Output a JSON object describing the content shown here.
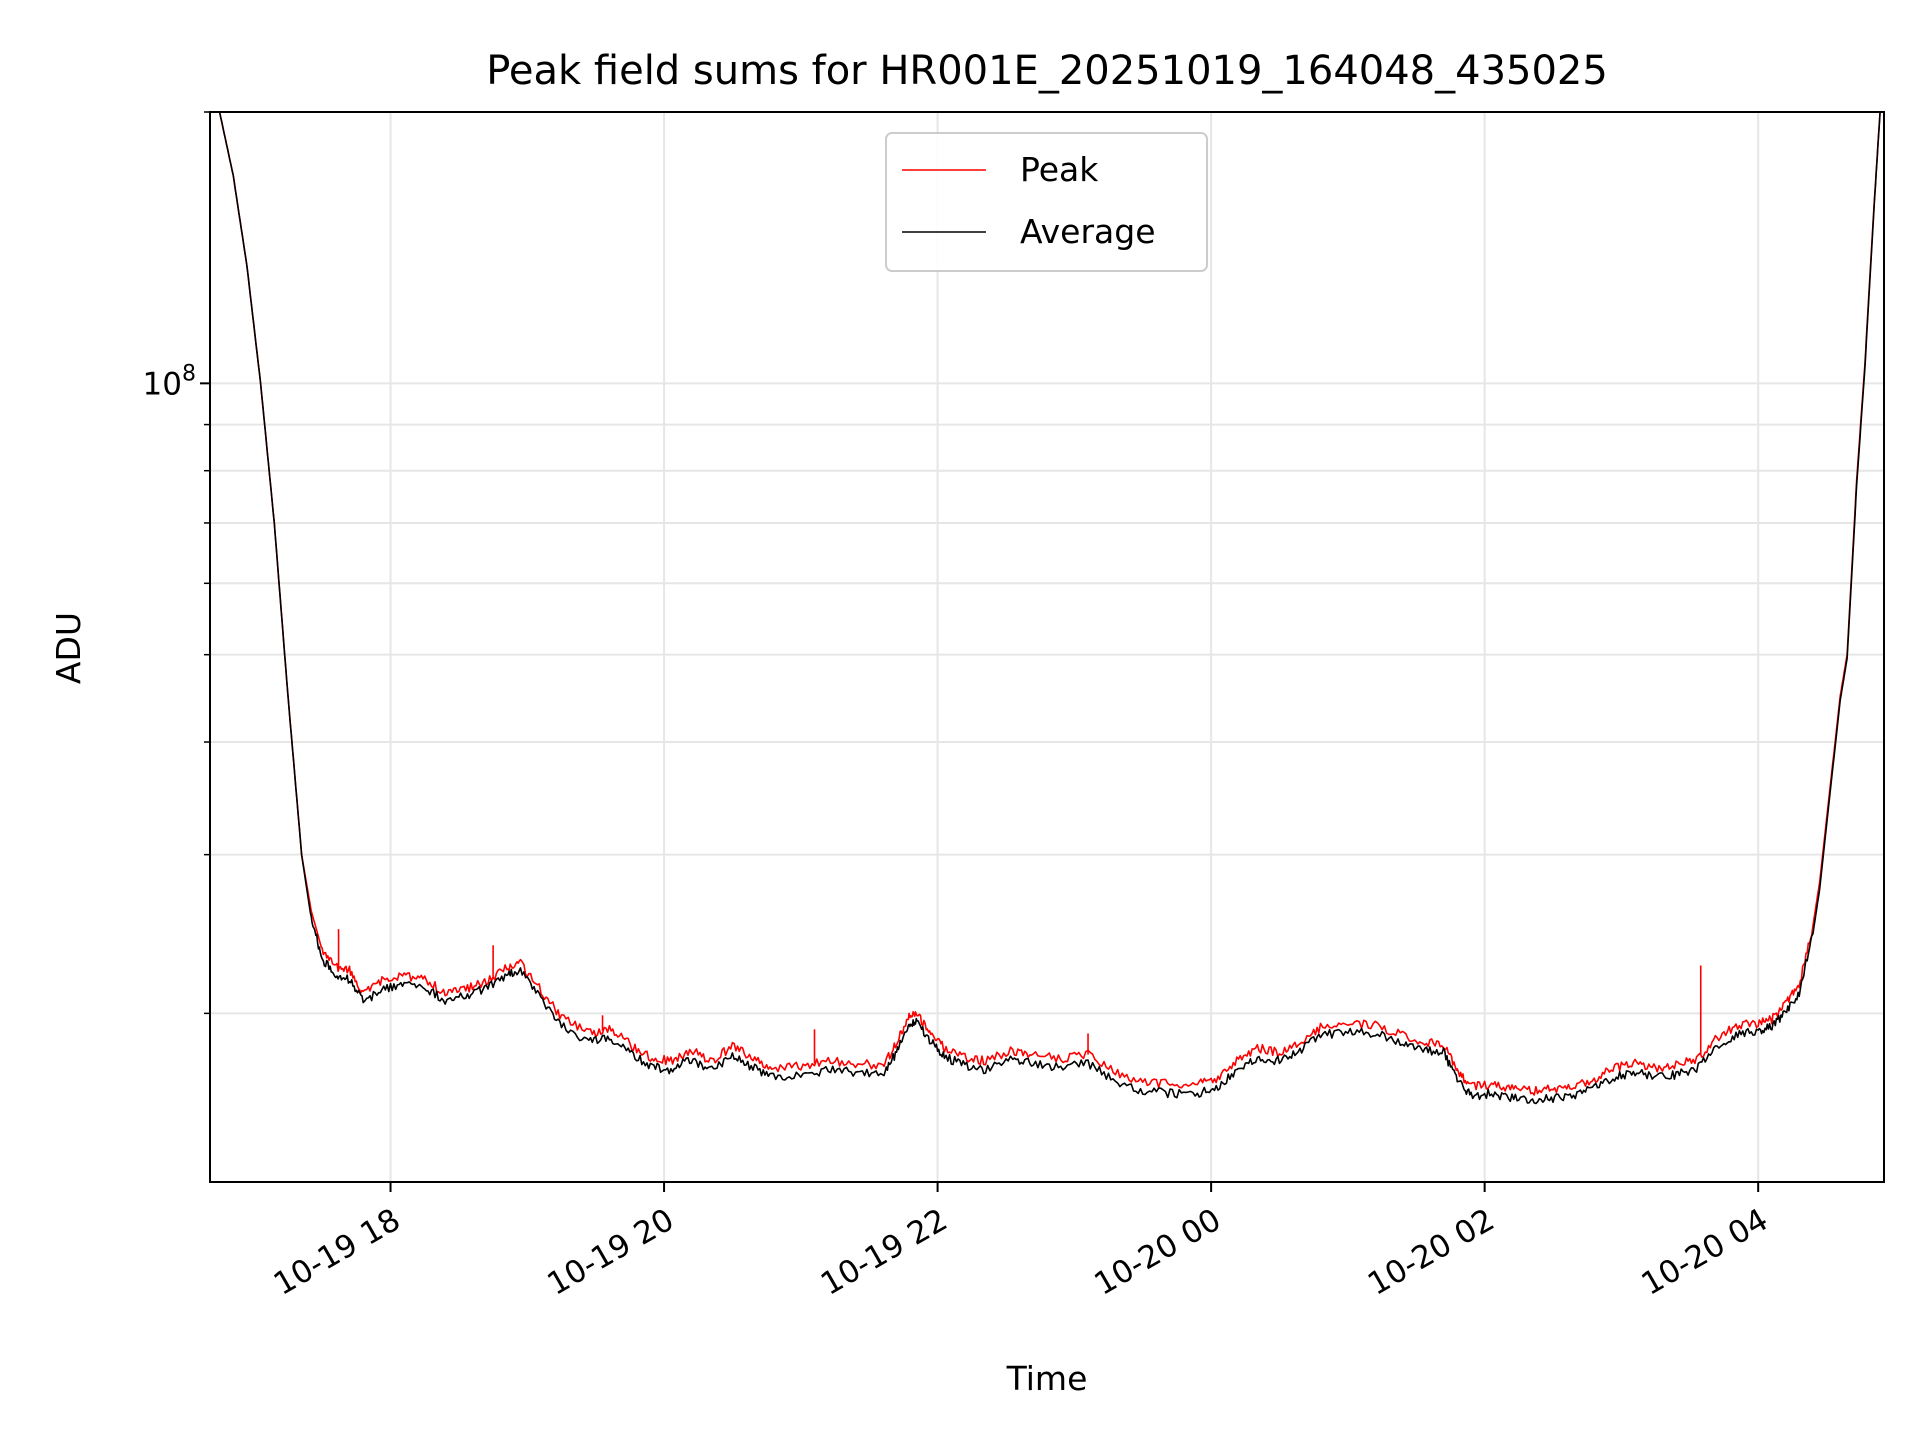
{
  "chart_data": {
    "type": "line",
    "title": "Peak field sums for HR001E_20251019_164048_435025",
    "xlabel": "Time",
    "ylabel": "ADU",
    "yscale": "log",
    "ylim": [
      13000000,
      200000000
    ],
    "xlim_hours": [
      16.68,
      28.92
    ],
    "x_unit": "hours since 2025-10-19 00:00",
    "grid": true,
    "legend_position": "top-center",
    "x_ticks": [
      {
        "hour": 18,
        "label": "10-19 18"
      },
      {
        "hour": 20,
        "label": "10-19 20"
      },
      {
        "hour": 22,
        "label": "10-19 22"
      },
      {
        "hour": 24,
        "label": "10-20 00"
      },
      {
        "hour": 26,
        "label": "10-20 02"
      },
      {
        "hour": 28,
        "label": "10-20 04"
      }
    ],
    "y_major_ticks": [
      {
        "value": 100000000,
        "base": "10",
        "exponent": "8"
      }
    ],
    "y_minor_ticks": [
      20000000,
      30000000,
      40000000,
      50000000,
      60000000,
      70000000,
      80000000,
      90000000,
      200000000
    ],
    "series": [
      {
        "name": "Peak",
        "color": "#ff0000",
        "points": [
          [
            16.68,
            210000000
          ],
          [
            16.75,
            200000000
          ],
          [
            16.85,
            170000000
          ],
          [
            16.95,
            135000000
          ],
          [
            17.05,
            100000000
          ],
          [
            17.15,
            70000000
          ],
          [
            17.25,
            45000000
          ],
          [
            17.35,
            30000000
          ],
          [
            17.42,
            26000000
          ],
          [
            17.5,
            23500000
          ],
          [
            17.6,
            22500000
          ],
          [
            17.7,
            22300000
          ],
          [
            17.8,
            21000000
          ],
          [
            17.95,
            21800000
          ],
          [
            18.1,
            22000000
          ],
          [
            18.25,
            21900000
          ],
          [
            18.4,
            21000000
          ],
          [
            18.55,
            21300000
          ],
          [
            18.7,
            21700000
          ],
          [
            18.85,
            22500000
          ],
          [
            18.95,
            22700000
          ],
          [
            19.1,
            21200000
          ],
          [
            19.25,
            19800000
          ],
          [
            19.45,
            19000000
          ],
          [
            19.6,
            19200000
          ],
          [
            19.75,
            18500000
          ],
          [
            19.9,
            17900000
          ],
          [
            20.05,
            17700000
          ],
          [
            20.2,
            18200000
          ],
          [
            20.35,
            17700000
          ],
          [
            20.5,
            18400000
          ],
          [
            20.65,
            17800000
          ],
          [
            20.8,
            17400000
          ],
          [
            21.0,
            17500000
          ],
          [
            21.2,
            17700000
          ],
          [
            21.4,
            17600000
          ],
          [
            21.6,
            17500000
          ],
          [
            21.7,
            18500000
          ],
          [
            21.78,
            19800000
          ],
          [
            21.85,
            20000000
          ],
          [
            21.95,
            19000000
          ],
          [
            22.05,
            18300000
          ],
          [
            22.2,
            17900000
          ],
          [
            22.35,
            17700000
          ],
          [
            22.55,
            18200000
          ],
          [
            22.7,
            18000000
          ],
          [
            22.9,
            17800000
          ],
          [
            23.1,
            18000000
          ],
          [
            23.3,
            17200000
          ],
          [
            23.5,
            16800000
          ],
          [
            23.7,
            16700000
          ],
          [
            23.9,
            16700000
          ],
          [
            24.05,
            16900000
          ],
          [
            24.2,
            17800000
          ],
          [
            24.35,
            18300000
          ],
          [
            24.5,
            18100000
          ],
          [
            24.65,
            18600000
          ],
          [
            24.8,
            19300000
          ],
          [
            25.0,
            19500000
          ],
          [
            25.2,
            19400000
          ],
          [
            25.4,
            18900000
          ],
          [
            25.55,
            18600000
          ],
          [
            25.7,
            18500000
          ],
          [
            25.8,
            17200000
          ],
          [
            25.9,
            16600000
          ],
          [
            26.05,
            16700000
          ],
          [
            26.2,
            16500000
          ],
          [
            26.35,
            16400000
          ],
          [
            26.5,
            16500000
          ],
          [
            26.65,
            16600000
          ],
          [
            26.8,
            16900000
          ],
          [
            26.95,
            17400000
          ],
          [
            27.1,
            17600000
          ],
          [
            27.25,
            17400000
          ],
          [
            27.4,
            17500000
          ],
          [
            27.55,
            17800000
          ],
          [
            27.7,
            18800000
          ],
          [
            27.85,
            19400000
          ],
          [
            28.0,
            19500000
          ],
          [
            28.1,
            19700000
          ],
          [
            28.2,
            20500000
          ],
          [
            28.3,
            21500000
          ],
          [
            28.4,
            25000000
          ],
          [
            28.45,
            28000000
          ],
          [
            28.52,
            35000000
          ],
          [
            28.6,
            45000000
          ],
          [
            28.65,
            50000000
          ],
          [
            28.72,
            78000000
          ],
          [
            28.78,
            105000000
          ],
          [
            28.85,
            160000000
          ],
          [
            28.9,
            210000000
          ]
        ]
      },
      {
        "name": "Average",
        "color": "#000000",
        "points": [
          [
            16.68,
            210000000
          ],
          [
            16.75,
            200000000
          ],
          [
            16.85,
            170000000
          ],
          [
            16.95,
            135000000
          ],
          [
            17.05,
            100000000
          ],
          [
            17.15,
            70000000
          ],
          [
            17.25,
            45000000
          ],
          [
            17.35,
            30000000
          ],
          [
            17.42,
            25500000
          ],
          [
            17.5,
            23000000
          ],
          [
            17.6,
            22000000
          ],
          [
            17.7,
            21800000
          ],
          [
            17.8,
            20600000
          ],
          [
            17.95,
            21300000
          ],
          [
            18.1,
            21500000
          ],
          [
            18.25,
            21400000
          ],
          [
            18.4,
            20600000
          ],
          [
            18.55,
            20900000
          ],
          [
            18.7,
            21300000
          ],
          [
            18.85,
            22100000
          ],
          [
            18.95,
            22300000
          ],
          [
            19.1,
            20800000
          ],
          [
            19.25,
            19400000
          ],
          [
            19.45,
            18600000
          ],
          [
            19.6,
            18800000
          ],
          [
            19.75,
            18100000
          ],
          [
            19.9,
            17500000
          ],
          [
            20.05,
            17300000
          ],
          [
            20.2,
            17800000
          ],
          [
            20.35,
            17300000
          ],
          [
            20.5,
            18000000
          ],
          [
            20.65,
            17400000
          ],
          [
            20.8,
            17000000
          ],
          [
            21.0,
            17100000
          ],
          [
            21.2,
            17300000
          ],
          [
            21.4,
            17200000
          ],
          [
            21.6,
            17100000
          ],
          [
            21.7,
            18100000
          ],
          [
            21.78,
            19400000
          ],
          [
            21.85,
            19600000
          ],
          [
            21.95,
            18600000
          ],
          [
            22.05,
            17900000
          ],
          [
            22.2,
            17500000
          ],
          [
            22.35,
            17300000
          ],
          [
            22.55,
            17800000
          ],
          [
            22.7,
            17600000
          ],
          [
            22.9,
            17400000
          ],
          [
            23.1,
            17600000
          ],
          [
            23.3,
            16800000
          ],
          [
            23.5,
            16400000
          ],
          [
            23.7,
            16300000
          ],
          [
            23.9,
            16300000
          ],
          [
            24.05,
            16500000
          ],
          [
            24.2,
            17400000
          ],
          [
            24.35,
            17900000
          ],
          [
            24.5,
            17700000
          ],
          [
            24.65,
            18200000
          ],
          [
            24.8,
            18900000
          ],
          [
            25.0,
            19100000
          ],
          [
            25.2,
            19000000
          ],
          [
            25.4,
            18500000
          ],
          [
            25.55,
            18200000
          ],
          [
            25.7,
            18100000
          ],
          [
            25.8,
            16800000
          ],
          [
            25.9,
            16200000
          ],
          [
            26.05,
            16300000
          ],
          [
            26.2,
            16100000
          ],
          [
            26.35,
            16000000
          ],
          [
            26.5,
            16100000
          ],
          [
            26.65,
            16200000
          ],
          [
            26.8,
            16500000
          ],
          [
            26.95,
            17000000
          ],
          [
            27.1,
            17200000
          ],
          [
            27.25,
            17000000
          ],
          [
            27.4,
            17100000
          ],
          [
            27.55,
            17400000
          ],
          [
            27.7,
            18400000
          ],
          [
            27.85,
            19000000
          ],
          [
            28.0,
            19100000
          ],
          [
            28.1,
            19300000
          ],
          [
            28.2,
            20100000
          ],
          [
            28.3,
            21100000
          ],
          [
            28.4,
            24500000
          ],
          [
            28.45,
            27500000
          ],
          [
            28.52,
            34500000
          ],
          [
            28.6,
            44500000
          ],
          [
            28.65,
            49500000
          ],
          [
            28.72,
            77000000
          ],
          [
            28.78,
            104000000
          ],
          [
            28.85,
            159000000
          ],
          [
            28.9,
            210000000
          ]
        ]
      }
    ],
    "spikes": [
      {
        "series": "Peak",
        "hour": 17.62,
        "value": 24800000
      },
      {
        "series": "Peak",
        "hour": 18.75,
        "value": 23800000
      },
      {
        "series": "Peak",
        "hour": 19.55,
        "value": 19900000
      },
      {
        "series": "Peak",
        "hour": 21.1,
        "value": 19200000
      },
      {
        "series": "Peak",
        "hour": 23.1,
        "value": 19000000
      },
      {
        "series": "Peak",
        "hour": 27.58,
        "value": 22600000
      }
    ]
  }
}
